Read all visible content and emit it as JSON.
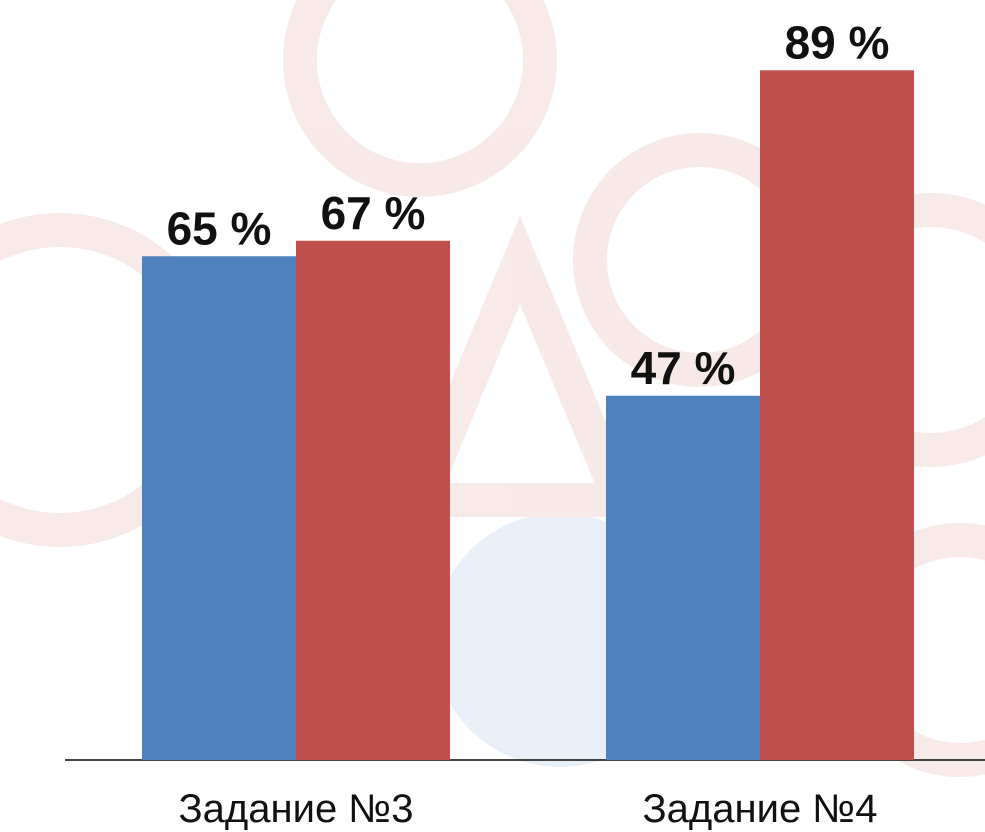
{
  "chart_data": {
    "type": "bar",
    "categories": [
      "Задание №3",
      "Задание №4"
    ],
    "series": [
      {
        "color": "#4f81bd",
        "values": [
          65,
          47
        ],
        "value_labels": [
          "65 %",
          "47 %"
        ]
      },
      {
        "color": "#c0504d",
        "values": [
          67,
          89
        ],
        "value_labels": [
          "67 %",
          "89 %"
        ]
      }
    ]
  }
}
